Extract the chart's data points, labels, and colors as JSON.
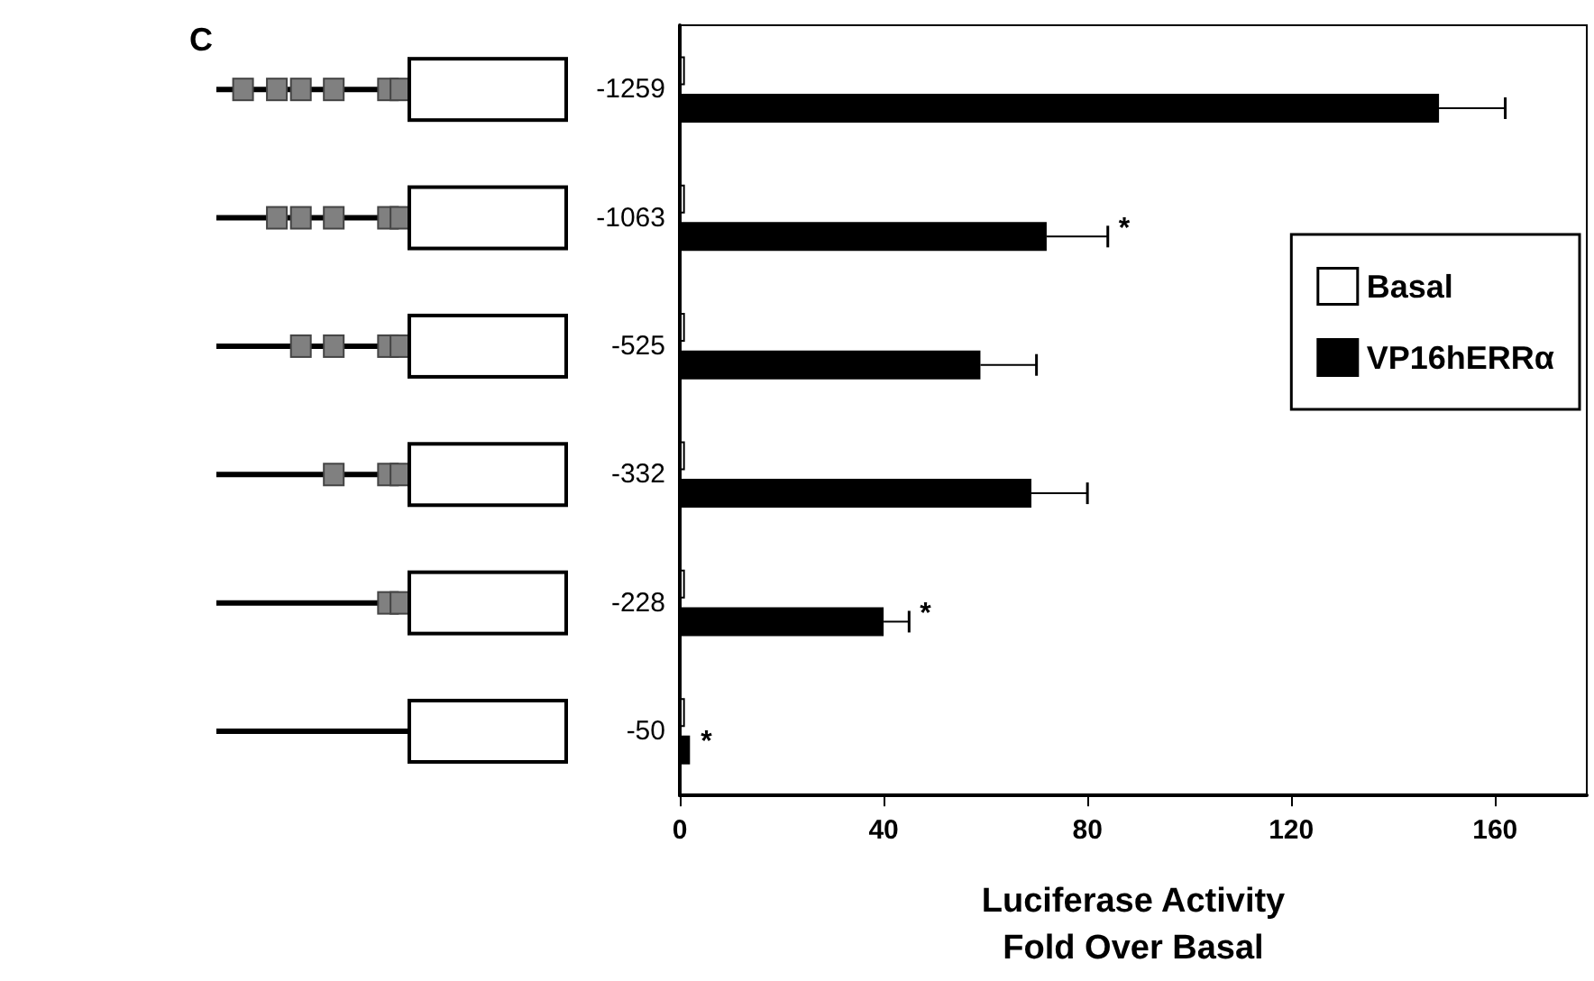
{
  "chart_data": {
    "type": "bar",
    "orientation": "horizontal",
    "title": "C",
    "xlabel": "Luciferase Activity\nFold Over Basal",
    "categories": [
      "-1259",
      "-1063",
      "-525",
      "-332",
      "-228",
      "-50"
    ],
    "series": [
      {
        "name": "Basal",
        "color": "#ffffff",
        "values": [
          1,
          1,
          1,
          1,
          1,
          1
        ]
      },
      {
        "name": "VP16hERRα",
        "color": "#000000",
        "values": [
          149,
          72,
          59,
          69,
          40,
          2
        ],
        "errors": [
          13,
          12,
          11,
          11,
          5,
          null
        ]
      }
    ],
    "xlim": [
      0,
      178
    ],
    "xticks": [
      0,
      40,
      80,
      120,
      160
    ],
    "legend": "top right",
    "grid": false,
    "annotations": [
      {
        "text": "*",
        "x": 84,
        "y": "-1063"
      },
      {
        "text": "*",
        "x": 45,
        "y": "-228"
      },
      {
        "text": "*",
        "x": 2,
        "y": "-50"
      }
    ]
  }
}
